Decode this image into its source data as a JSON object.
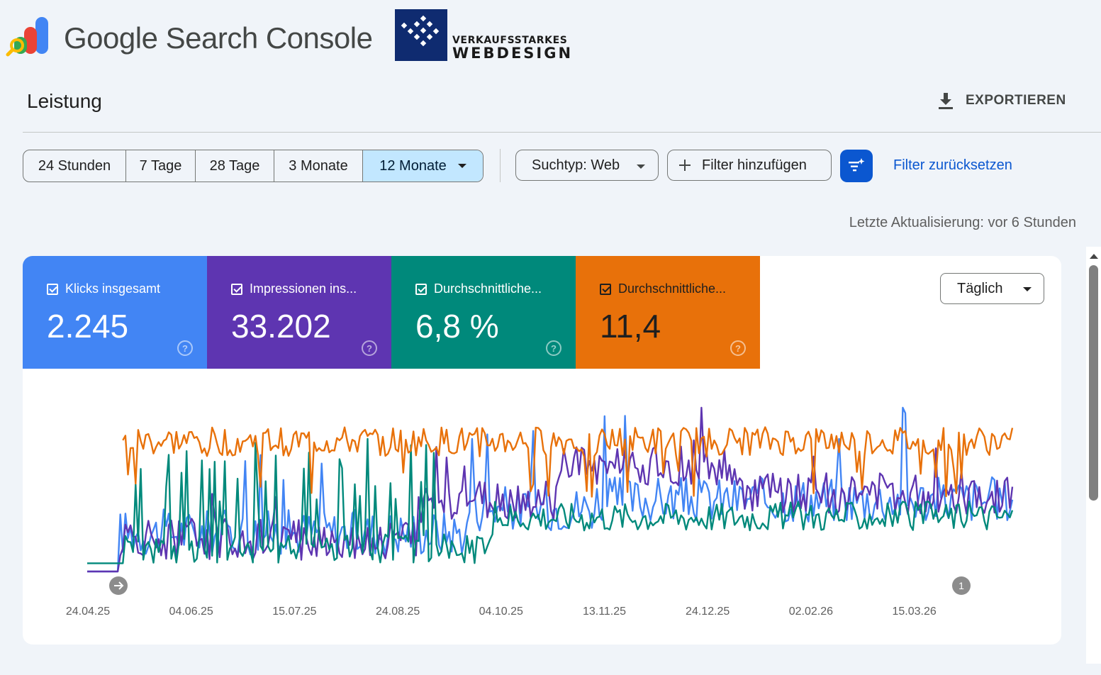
{
  "header": {
    "app_title": "Google Search Console",
    "partner_logo_line1": "VERKAUFSSTARKES",
    "partner_logo_line2": "WEBDESIGN",
    "page_title": "Leistung",
    "export_label": "EXPORTIEREN",
    "icons": {
      "app": "search-console-logo-icon",
      "export": "download-icon"
    }
  },
  "filters": {
    "ranges": [
      {
        "label": "24 Stunden"
      },
      {
        "label": "7 Tage"
      },
      {
        "label": "28 Tage"
      },
      {
        "label": "3 Monate"
      },
      {
        "label": "12 Monate",
        "selected": true
      }
    ],
    "search_type": "Suchtyp: Web",
    "add_filter": "Filter hinzufügen",
    "reset": "Filter zurücksetzen",
    "last_updated": "Letzte Aktualisierung: vor 6 Stunden"
  },
  "metrics": [
    {
      "label": "Klicks insgesamt",
      "value": "2.245",
      "color": "#4285f4",
      "checked": true
    },
    {
      "label": "Impressionen ins...",
      "value": "33.202",
      "color": "#5e35b1",
      "checked": true
    },
    {
      "label": "Durchschnittliche...",
      "value": "6,8 %",
      "color": "#00897b",
      "checked": true
    },
    {
      "label": "Durchschnittliche...",
      "value": "11,4",
      "color": "#e8710a",
      "checked": true,
      "dark_text": true
    }
  ],
  "granularity": "Täglich",
  "chart_data": {
    "type": "line",
    "x_tick_labels": [
      "24.04.25",
      "04.06.25",
      "15.07.25",
      "24.08.25",
      "04.10.25",
      "13.11.25",
      "24.12.25",
      "02.02.26",
      "15.03.26"
    ],
    "annotation_markers": [
      {
        "date": "24.04.25",
        "label": ""
      },
      {
        "date": "26.03.26",
        "label": "1"
      }
    ],
    "series": [
      {
        "color": "#4285f4",
        "note": "daily noisy series, near 0 until early May 2025, then low, rising to mid-levels in late 2025"
      },
      {
        "color": "#5e35b1",
        "note": "daily noisy series, low until Sep 2025, peaks Nov 2025–Jan 2026, mid levels thereafter"
      },
      {
        "color": "#00897b",
        "note": "daily noisy series with frequent spikes May–Aug 2025, mid levels afterwards"
      },
      {
        "color": "#e8710a",
        "note": "daily noisy series starting early May 2025 near top of chart, stable high band through Apr 2026"
      }
    ],
    "grid": false,
    "legend": "none"
  }
}
